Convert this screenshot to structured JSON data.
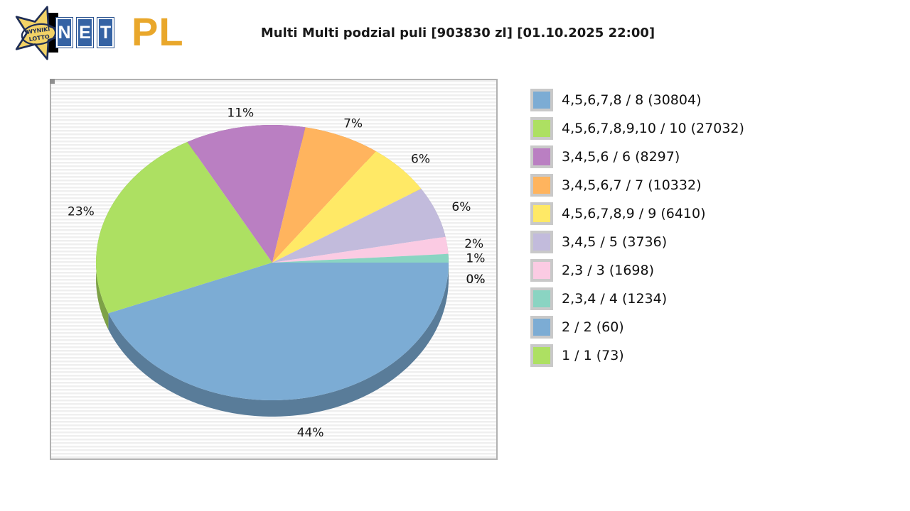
{
  "header": {
    "title": "Multi Multi podzial puli [903830 zl] [01.10.2025 22:00]",
    "logo": {
      "star_line1": "WYNIKI",
      "star_line2": "LOTTO",
      "net": [
        "N",
        "E",
        "T"
      ],
      "pl": "PL",
      "star_color": "#f2d266",
      "star_outline": "#1e2d55",
      "tile_color": "#3563a4",
      "pl_color": "#e9a72b"
    }
  },
  "chart_data": {
    "type": "pie",
    "style": "3d-pie",
    "title": "Multi Multi podzial puli [903830 zl] [01.10.2025 22:00]",
    "pool_zl": "903830",
    "draw_datetime": "01.10.2025 22:00",
    "legend_position": "right",
    "slices": [
      {
        "label": "4,5,6,7,8 / 8 (30804)",
        "tier": "4,5,6,7,8 / 8",
        "winners": 30804,
        "percent": 44,
        "percent_label": "44%",
        "color": "#7CACD4"
      },
      {
        "label": "4,5,6,7,8,9,10 / 10 (27032)",
        "tier": "4,5,6,7,8,9,10 / 10",
        "winners": 27032,
        "percent": 23,
        "percent_label": "23%",
        "color": "#ADE062"
      },
      {
        "label": "3,4,5,6 / 6 (8297)",
        "tier": "3,4,5,6 / 6",
        "winners": 8297,
        "percent": 11,
        "percent_label": "11%",
        "color": "#BA7FC2"
      },
      {
        "label": "3,4,5,6,7 / 7 (10332)",
        "tier": "3,4,5,6,7 / 7",
        "winners": 10332,
        "percent": 7,
        "percent_label": "7%",
        "color": "#FFB45E"
      },
      {
        "label": "4,5,6,7,8,9 / 9 (6410)",
        "tier": "4,5,6,7,8,9 / 9",
        "winners": 6410,
        "percent": 6,
        "percent_label": "6%",
        "color": "#FFE966"
      },
      {
        "label": "3,4,5 / 5 (3736)",
        "tier": "3,4,5 / 5",
        "winners": 3736,
        "percent": 6,
        "percent_label": "6%",
        "color": "#C2BBDC"
      },
      {
        "label": "2,3 / 3 (1698)",
        "tier": "2,3 / 3",
        "winners": 1698,
        "percent": 2,
        "percent_label": "2%",
        "color": "#FBCBE3"
      },
      {
        "label": "2,3,4 / 4 (1234)",
        "tier": "2,3,4 / 4",
        "winners": 1234,
        "percent": 1,
        "percent_label": "1%",
        "color": "#8AD4C2"
      },
      {
        "label": "2 / 2 (60)",
        "tier": "2 / 2",
        "winners": 60,
        "percent": 0,
        "percent_label": "0%",
        "color": "#7CACD4"
      },
      {
        "label": "1 / 1 (73)",
        "tier": "1 / 1",
        "winners": 73,
        "percent": 0,
        "percent_label": "0%",
        "color": "#ADE062"
      }
    ]
  }
}
